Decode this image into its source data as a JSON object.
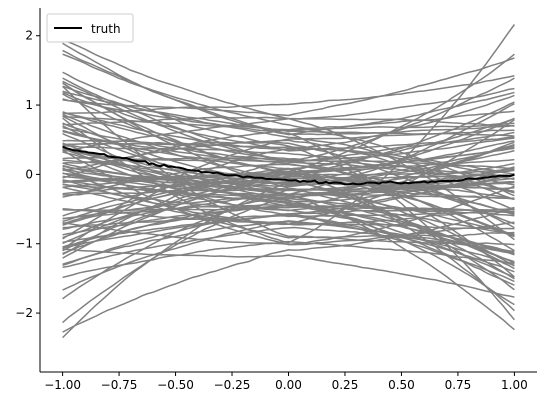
{
  "chart_data": {
    "type": "line",
    "title": "",
    "xlabel": "",
    "ylabel": "",
    "xlim": [
      -1.1,
      1.1
    ],
    "ylim": [
      -2.85,
      2.4
    ],
    "grid": false,
    "legend_placement": "top-left",
    "x_ticks": [
      -1.0,
      -0.75,
      -0.5,
      -0.25,
      0.0,
      0.25,
      0.5,
      0.75,
      1.0
    ],
    "x_tick_labels": [
      "−1.00",
      "−0.75",
      "−0.50",
      "−0.25",
      "0.00",
      "0.25",
      "0.50",
      "0.75",
      "1.00"
    ],
    "y_ticks": [
      -2,
      -1,
      0,
      1,
      2
    ],
    "y_tick_labels": [
      "−2",
      "−1",
      "0",
      "1",
      "2"
    ],
    "truth": {
      "name": "truth",
      "color": "#000000",
      "x": [
        -1.0,
        -0.75,
        -0.5,
        -0.25,
        0.0,
        0.25,
        0.5,
        0.75,
        1.0
      ],
      "y": [
        0.39,
        0.24,
        0.1,
        -0.02,
        -0.09,
        -0.13,
        -0.12,
        -0.09,
        0.0
      ]
    },
    "samples": {
      "color": "#808080",
      "count": 100,
      "x_range": [
        -1.0,
        1.0
      ],
      "endpoint_range_left": [
        -2.35,
        1.95
      ],
      "endpoint_range_right": [
        -2.62,
        2.18
      ],
      "center_range": [
        -0.9,
        0.95
      ]
    }
  }
}
